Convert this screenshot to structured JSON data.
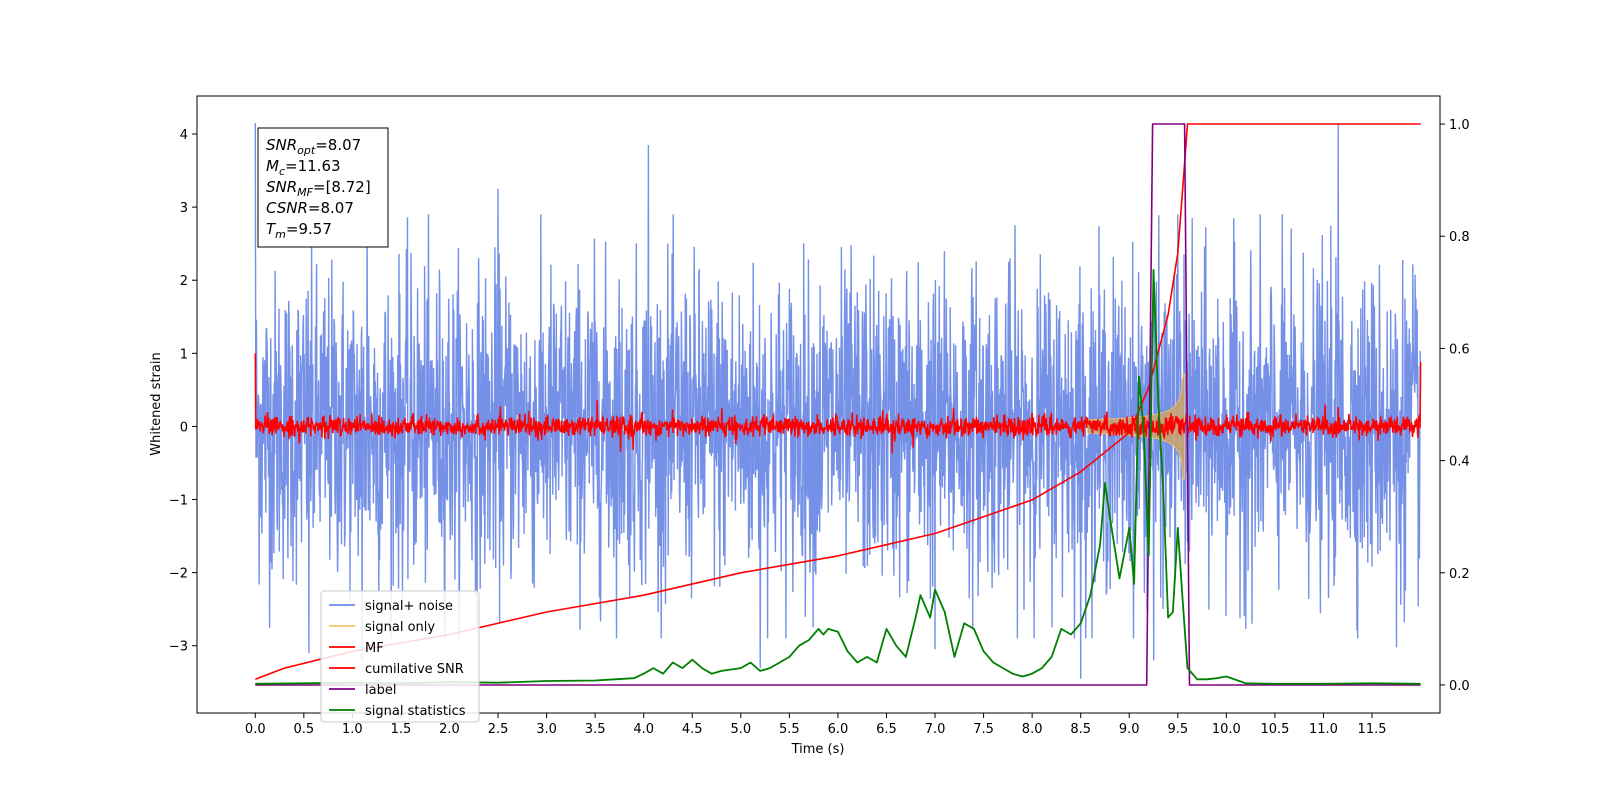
{
  "chart_data": {
    "type": "line",
    "xlabel": "Time (s)",
    "ylabel": "Whitened strain",
    "xlim": [
      -0.6,
      12.2
    ],
    "ylim": [
      -3.92,
      4.52
    ],
    "y2lim": [
      -0.05,
      1.05
    ],
    "x_ticks": [
      0.0,
      0.5,
      1.0,
      1.5,
      2.0,
      2.5,
      3.0,
      3.5,
      4.0,
      4.5,
      5.0,
      5.5,
      6.0,
      6.5,
      7.0,
      7.5,
      8.0,
      8.5,
      9.0,
      9.5,
      10.0,
      10.5,
      11.0,
      11.5
    ],
    "x_tick_labels": [
      "0.0",
      "0.5",
      "1.0",
      "1.5",
      "2.0",
      "2.5",
      "3.0",
      "3.5",
      "4.0",
      "4.5",
      "5.0",
      "5.5",
      "6.0",
      "6.5",
      "7.0",
      "7.5",
      "8.0",
      "8.5",
      "9.0",
      "9.5",
      "10.0",
      "10.5",
      "11.0",
      "11.5"
    ],
    "y_ticks": [
      -3,
      -2,
      -1,
      0,
      1,
      2,
      3,
      4
    ],
    "y_tick_labels": [
      "−3",
      "−2",
      "−1",
      "0",
      "1",
      "2",
      "3",
      "4"
    ],
    "y2_ticks": [
      0.0,
      0.2,
      0.4,
      0.6,
      0.8,
      1.0
    ],
    "y2_tick_labels": [
      "0.0",
      "0.2",
      "0.4",
      "0.6",
      "0.8",
      "1.0"
    ],
    "grid": false,
    "legend_position": "lower-left",
    "annotation": {
      "lines": [
        {
          "base": "SNR",
          "sub": "opt",
          "value": "=8.07"
        },
        {
          "base": "M",
          "sub": "c",
          "value": "=11.63"
        },
        {
          "base": "SNR",
          "sub": "MF",
          "value": "=[8.72]"
        },
        {
          "base": "CSNR",
          "sub": "",
          "value": "=8.07"
        },
        {
          "base": "T",
          "sub": "m",
          "value": "=9.57"
        }
      ]
    },
    "series": [
      {
        "name": "signal+ noise",
        "color": "#6d8ae6",
        "axis": "left",
        "style": "noise",
        "x_range": [
          0.0,
          12.0
        ],
        "sigma": 1.05,
        "peaks": [
          [
            0.0,
            4.15
          ],
          [
            4.05,
            3.85
          ],
          [
            11.15,
            4.15
          ],
          [
            9.5,
            2.9
          ],
          [
            2.5,
            3.25
          ],
          [
            1.15,
            2.75
          ],
          [
            8.5,
            -3.45
          ],
          [
            5.2,
            -3.3
          ],
          [
            9.25,
            -3.2
          ],
          [
            1.1,
            -3.2
          ],
          [
            0.55,
            -3.1
          ],
          [
            7.0,
            -3.05
          ],
          [
            11.75,
            -3.02
          ]
        ]
      },
      {
        "name": "signal only",
        "color": "#f5c46a",
        "axis": "left",
        "style": "chirp",
        "t_merge": 9.57,
        "max_amp": 0.72
      },
      {
        "name": "MF",
        "color": "#ff0000",
        "axis": "left",
        "style": "mf",
        "x_range": [
          0.0,
          12.0
        ],
        "sigma": 0.07,
        "start_value": 1.0,
        "end_value": 0.88
      },
      {
        "name": "cumilative SNR",
        "color": "#ff0000",
        "axis": "right",
        "x": [
          0.0,
          0.3,
          1.0,
          2.0,
          3.0,
          4.0,
          5.0,
          6.0,
          7.0,
          7.5,
          8.0,
          8.5,
          9.0,
          9.2,
          9.4,
          9.5,
          9.57,
          9.6,
          12.0
        ],
        "y": [
          0.01,
          0.03,
          0.06,
          0.09,
          0.13,
          0.16,
          0.2,
          0.23,
          0.27,
          0.3,
          0.33,
          0.38,
          0.45,
          0.53,
          0.66,
          0.77,
          0.93,
          1.0,
          1.0
        ]
      },
      {
        "name": "label",
        "color": "#800080",
        "axis": "right",
        "x": [
          0.0,
          9.18,
          9.24,
          9.57,
          9.62,
          12.0
        ],
        "y": [
          0.0,
          0.0,
          1.0,
          1.0,
          0.0,
          0.0
        ]
      },
      {
        "name": "signal statistics",
        "color": "#008000",
        "axis": "right",
        "x": [
          0.0,
          0.5,
          1.0,
          1.5,
          2.0,
          2.5,
          3.0,
          3.5,
          3.7,
          3.9,
          4.0,
          4.1,
          4.2,
          4.3,
          4.4,
          4.5,
          4.6,
          4.7,
          4.8,
          5.0,
          5.1,
          5.2,
          5.3,
          5.5,
          5.6,
          5.7,
          5.8,
          5.85,
          5.9,
          6.0,
          6.1,
          6.2,
          6.3,
          6.4,
          6.5,
          6.6,
          6.7,
          6.8,
          6.85,
          6.9,
          6.95,
          7.0,
          7.1,
          7.2,
          7.3,
          7.4,
          7.5,
          7.6,
          7.7,
          7.8,
          7.9,
          8.0,
          8.1,
          8.2,
          8.3,
          8.4,
          8.5,
          8.6,
          8.7,
          8.75,
          8.8,
          8.9,
          9.0,
          9.05,
          9.1,
          9.15,
          9.2,
          9.25,
          9.3,
          9.35,
          9.4,
          9.45,
          9.5,
          9.55,
          9.6,
          9.7,
          9.8,
          9.9,
          10.0,
          10.2,
          10.5,
          11.0,
          11.5,
          12.0
        ],
        "y": [
          0.002,
          0.003,
          0.004,
          0.003,
          0.005,
          0.004,
          0.007,
          0.008,
          0.01,
          0.012,
          0.02,
          0.03,
          0.02,
          0.04,
          0.03,
          0.045,
          0.03,
          0.02,
          0.025,
          0.03,
          0.04,
          0.025,
          0.03,
          0.05,
          0.07,
          0.08,
          0.1,
          0.09,
          0.1,
          0.095,
          0.06,
          0.04,
          0.05,
          0.04,
          0.1,
          0.07,
          0.05,
          0.12,
          0.16,
          0.14,
          0.12,
          0.17,
          0.13,
          0.05,
          0.11,
          0.1,
          0.06,
          0.04,
          0.03,
          0.02,
          0.015,
          0.02,
          0.03,
          0.05,
          0.1,
          0.09,
          0.11,
          0.16,
          0.25,
          0.36,
          0.3,
          0.19,
          0.28,
          0.18,
          0.55,
          0.45,
          0.23,
          0.74,
          0.5,
          0.35,
          0.12,
          0.13,
          0.28,
          0.15,
          0.03,
          0.01,
          0.01,
          0.012,
          0.015,
          0.003,
          0.002,
          0.002,
          0.003,
          0.002
        ]
      }
    ]
  }
}
